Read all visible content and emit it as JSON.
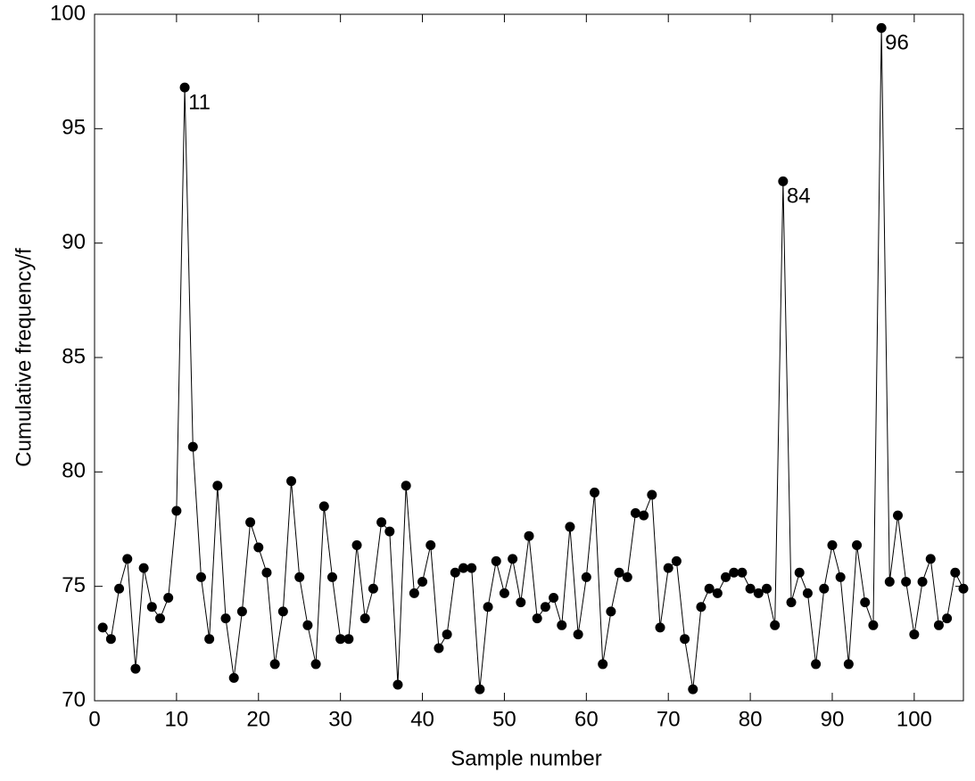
{
  "chart_data": {
    "type": "line",
    "x_label": "Sample number",
    "y_label": "Cumulative frequency/f",
    "x": [
      1,
      2,
      3,
      4,
      5,
      6,
      7,
      8,
      9,
      10,
      11,
      12,
      13,
      14,
      15,
      16,
      17,
      18,
      19,
      20,
      21,
      22,
      23,
      24,
      25,
      26,
      27,
      28,
      29,
      30,
      31,
      32,
      33,
      34,
      35,
      36,
      37,
      38,
      39,
      40,
      41,
      42,
      43,
      44,
      45,
      46,
      47,
      48,
      49,
      50,
      51,
      52,
      53,
      54,
      55,
      56,
      57,
      58,
      59,
      60,
      61,
      62,
      63,
      64,
      65,
      66,
      67,
      68,
      69,
      70,
      71,
      72,
      73,
      74,
      75,
      76,
      77,
      78,
      79,
      80,
      81,
      82,
      83,
      84,
      85,
      86,
      87,
      88,
      89,
      90,
      91,
      92,
      93,
      94,
      95,
      96,
      97,
      98,
      99,
      100,
      101,
      102,
      103,
      104,
      105,
      106
    ],
    "series": [
      {
        "color": "#000000",
        "values": [
          73.2,
          72.7,
          74.9,
          76.2,
          71.4,
          75.8,
          74.1,
          73.6,
          74.5,
          78.3,
          96.8,
          81.1,
          75.4,
          72.7,
          79.4,
          73.6,
          71.0,
          73.9,
          77.8,
          76.7,
          75.6,
          71.6,
          73.9,
          79.6,
          75.4,
          73.3,
          71.6,
          78.5,
          75.4,
          72.7,
          72.7,
          76.8,
          73.6,
          74.9,
          77.8,
          77.4,
          70.7,
          79.4,
          74.7,
          75.2,
          76.8,
          72.3,
          72.9,
          75.6,
          75.8,
          75.8,
          70.5,
          74.1,
          76.1,
          74.7,
          76.2,
          74.3,
          77.2,
          73.6,
          74.1,
          74.5,
          73.3,
          77.6,
          72.9,
          75.4,
          79.1,
          71.6,
          73.9,
          75.6,
          75.4,
          78.2,
          78.1,
          79.0,
          73.2,
          75.8,
          76.1,
          72.7,
          70.5,
          74.1,
          74.9,
          74.7,
          75.4,
          75.6,
          75.6,
          74.9,
          74.7,
          74.9,
          73.3,
          92.7,
          74.3,
          75.6,
          74.7,
          71.6,
          74.9,
          76.8,
          75.4,
          71.6,
          76.8,
          74.3,
          73.3,
          99.4,
          75.2,
          78.1,
          75.2,
          72.9,
          75.2,
          76.2,
          73.3,
          73.6,
          75.6,
          74.9
        ]
      }
    ],
    "annotations": [
      {
        "text": "11",
        "x": 11,
        "y": 96.8
      },
      {
        "text": "84",
        "x": 84,
        "y": 92.7
      },
      {
        "text": "96",
        "x": 96,
        "y": 99.4
      }
    ],
    "xlim": [
      0,
      106
    ],
    "xticks": [
      0,
      10,
      20,
      30,
      40,
      50,
      60,
      70,
      80,
      90,
      100
    ],
    "ylim": [
      70,
      100
    ],
    "yticks": [
      70,
      75,
      80,
      85,
      90,
      95,
      100
    ],
    "grid": false
  }
}
